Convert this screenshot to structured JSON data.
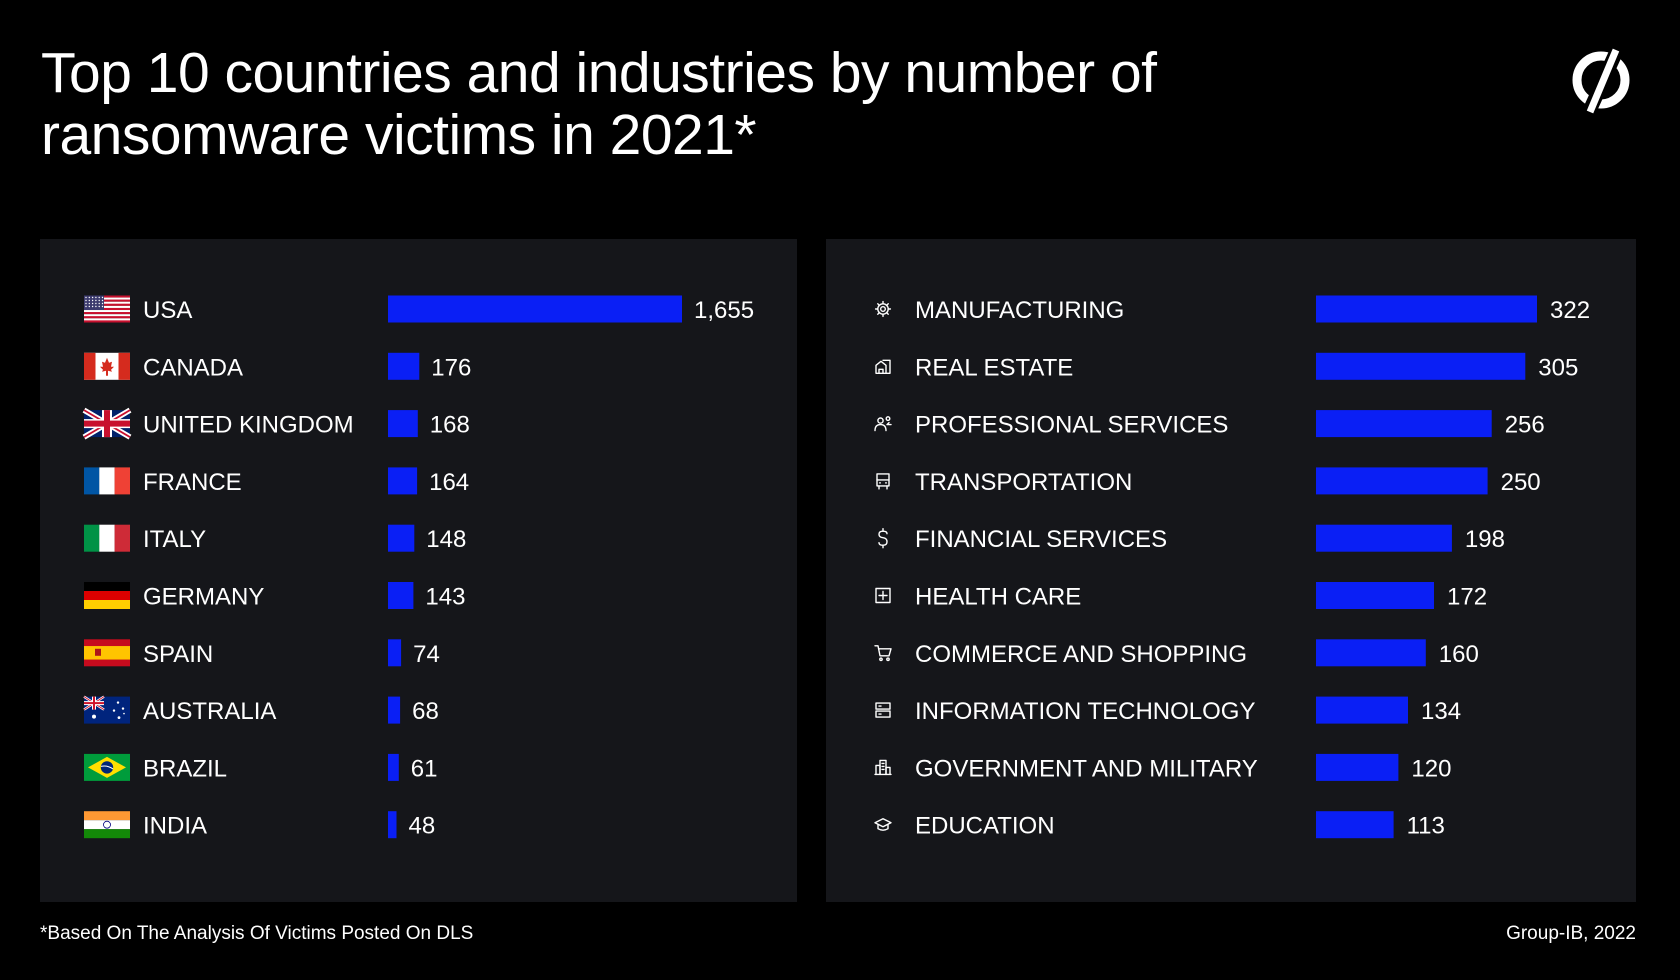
{
  "title": "Top 10 countries and industries by number of ransomware victims in 2021*",
  "footnote": "*Based On The Analysis Of Victims Posted On DLS",
  "credit": "Group-IB, 2022",
  "colors": {
    "background": "#000000",
    "panel": "#15161a",
    "bar": "#0a1ff5",
    "text": "#ffffff"
  },
  "chart_data": [
    {
      "type": "bar",
      "orientation": "horizontal",
      "categories": [
        "USA",
        "CANADA",
        "UNITED KINGDOM",
        "FRANCE",
        "ITALY",
        "GERMANY",
        "SPAIN",
        "AUSTRALIA",
        "BRAZIL",
        "INDIA"
      ],
      "value_labels": [
        "1,655",
        "176",
        "168",
        "164",
        "148",
        "143",
        "74",
        "68",
        "61",
        "48"
      ],
      "values": [
        1655,
        176,
        168,
        164,
        148,
        143,
        74,
        68,
        61,
        48
      ],
      "icons": [
        "flag-usa-icon",
        "flag-canada-icon",
        "flag-uk-icon",
        "flag-france-icon",
        "flag-italy-icon",
        "flag-germany-icon",
        "flag-spain-icon",
        "flag-australia-icon",
        "flag-brazil-icon",
        "flag-india-icon"
      ],
      "xlim": [
        0,
        1655
      ]
    },
    {
      "type": "bar",
      "orientation": "horizontal",
      "categories": [
        "MANUFACTURING",
        "REAL ESTATE",
        "PROFESSIONAL SERVICES",
        "TRANSPORTATION",
        "FINANCIAL SERVICES",
        "HEALTH CARE",
        "COMMERCE AND SHOPPING",
        "INFORMATION TECHNOLOGY",
        "GOVERNMENT AND MILITARY",
        "EDUCATION"
      ],
      "value_labels": [
        "322",
        "305",
        "256",
        "250",
        "198",
        "172",
        "160",
        "134",
        "120",
        "113"
      ],
      "values": [
        322,
        305,
        256,
        250,
        198,
        172,
        160,
        134,
        120,
        113
      ],
      "icons": [
        "gear-icon",
        "building-icon",
        "people-icon",
        "bus-icon",
        "dollar-icon",
        "medical-cross-icon",
        "cart-icon",
        "server-icon",
        "city-icon",
        "graduation-cap-icon"
      ],
      "xlim": [
        0,
        322
      ]
    }
  ]
}
